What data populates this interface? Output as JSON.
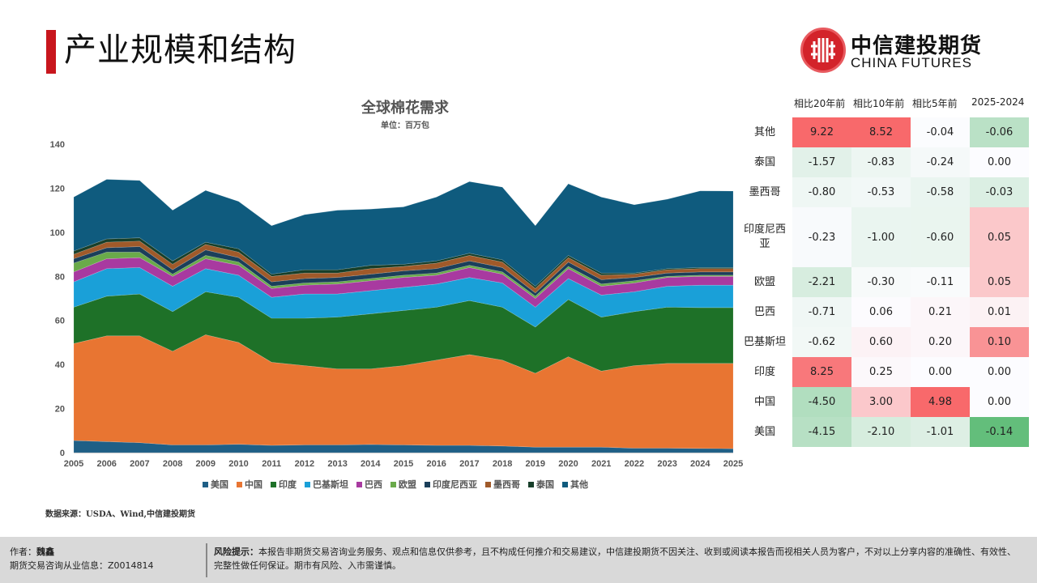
{
  "header": {
    "title": "产业规模和结构",
    "logo_cn": "中信建投期货",
    "logo_en": "CHINA FUTURES"
  },
  "chart_data": {
    "type": "area",
    "stacked": true,
    "title": "全球棉花需求",
    "subtitle": "单位：百万包",
    "xlabel": "",
    "ylabel": "",
    "ylim": [
      0,
      140
    ],
    "yticks": [
      0,
      20,
      40,
      60,
      80,
      100,
      120,
      140
    ],
    "grid": false,
    "legend_position": "bottom",
    "x": [
      "2005",
      "2006",
      "2007",
      "2008",
      "2009",
      "2010",
      "2011",
      "2012",
      "2013",
      "2014",
      "2015",
      "2016",
      "2017",
      "2018",
      "2019",
      "2020",
      "2021",
      "2022",
      "2023",
      "2024",
      "2025"
    ],
    "series": [
      {
        "name": "美国",
        "color": "#1f5f86",
        "values": [
          5.5,
          5.0,
          4.5,
          3.5,
          3.5,
          3.8,
          3.3,
          3.5,
          3.5,
          3.7,
          3.5,
          3.3,
          3.3,
          3.0,
          2.5,
          2.5,
          2.5,
          2.0,
          2.0,
          1.9,
          1.8
        ]
      },
      {
        "name": "中国",
        "color": "#e87532",
        "values": [
          44.0,
          48.0,
          48.5,
          42.5,
          50.0,
          46.2,
          37.7,
          36.0,
          34.5,
          34.3,
          36.0,
          38.7,
          41.2,
          39.0,
          33.5,
          41.0,
          34.5,
          37.5,
          38.5,
          38.6,
          38.7
        ]
      },
      {
        "name": "印度",
        "color": "#1e7128",
        "values": [
          16.5,
          18.0,
          19.0,
          18.0,
          19.5,
          20.5,
          20.0,
          21.5,
          23.5,
          25.0,
          25.0,
          24.0,
          24.5,
          24.0,
          21.0,
          26.0,
          24.5,
          24.5,
          25.5,
          25.3,
          25.3
        ]
      },
      {
        "name": "巴基斯坦",
        "color": "#1aa0d8",
        "values": [
          11.5,
          12.5,
          12.0,
          11.5,
          10.5,
          10.0,
          9.5,
          11.0,
          10.5,
          10.5,
          10.5,
          10.5,
          10.5,
          11.0,
          9.0,
          9.5,
          10.0,
          9.0,
          9.5,
          10.2,
          10.2
        ]
      },
      {
        "name": "巴西",
        "color": "#a83aa0",
        "values": [
          4.5,
          4.5,
          4.5,
          4.5,
          4.5,
          4.5,
          4.0,
          4.0,
          4.5,
          4.5,
          4.5,
          4.0,
          4.5,
          4.0,
          4.0,
          4.5,
          4.0,
          4.0,
          4.0,
          4.0,
          4.0
        ]
      },
      {
        "name": "欧盟",
        "color": "#6aaa4a",
        "values": [
          4.0,
          3.0,
          2.5,
          1.0,
          1.5,
          1.5,
          1.0,
          1.0,
          1.0,
          1.0,
          1.0,
          1.0,
          1.0,
          1.0,
          1.0,
          1.0,
          1.0,
          1.0,
          0.5,
          0.5,
          0.5
        ]
      },
      {
        "name": "印度尼西亚",
        "color": "#1b3f5a",
        "values": [
          2.0,
          2.0,
          2.5,
          2.0,
          2.5,
          2.0,
          2.0,
          2.0,
          2.0,
          2.0,
          2.0,
          2.0,
          2.0,
          2.0,
          1.5,
          2.0,
          2.0,
          1.5,
          1.5,
          1.5,
          1.5
        ]
      },
      {
        "name": "墨西哥",
        "color": "#a05a2a",
        "values": [
          2.0,
          2.5,
          2.5,
          2.5,
          2.5,
          2.5,
          2.5,
          2.5,
          2.0,
          2.5,
          2.0,
          2.5,
          2.5,
          2.5,
          2.0,
          2.0,
          2.0,
          1.5,
          1.5,
          1.5,
          1.5
        ]
      },
      {
        "name": "泰国",
        "color": "#173f2a",
        "values": [
          1.5,
          1.5,
          1.5,
          1.5,
          1.0,
          1.5,
          1.0,
          1.5,
          1.5,
          1.5,
          1.0,
          1.0,
          1.0,
          1.0,
          1.0,
          1.0,
          1.0,
          0.5,
          0.5,
          0.5,
          0.5
        ]
      },
      {
        "name": "其他",
        "color": "#0f5b7e",
        "values": [
          24.5,
          27.0,
          26.0,
          23.0,
          23.5,
          21.5,
          22.0,
          25.0,
          27.0,
          25.5,
          26.0,
          29.0,
          32.5,
          33.0,
          27.5,
          32.5,
          34.5,
          31.0,
          31.5,
          34.8,
          34.7
        ]
      }
    ]
  },
  "table": {
    "columns": [
      "相比20年前",
      "相比10年前",
      "相比5年前",
      "2025-2024"
    ],
    "rows": [
      {
        "label": "其他",
        "values": [
          "9.22",
          "8.52",
          "-0.04",
          "-0.06"
        ]
      },
      {
        "label": "泰国",
        "values": [
          "-1.57",
          "-0.83",
          "-0.24",
          "0.00"
        ]
      },
      {
        "label": "墨西哥",
        "values": [
          "-0.80",
          "-0.53",
          "-0.58",
          "-0.03"
        ]
      },
      {
        "label": "印度尼西亚",
        "values": [
          "-0.23",
          "-1.00",
          "-0.60",
          "0.05"
        ]
      },
      {
        "label": "欧盟",
        "values": [
          "-2.21",
          "-0.30",
          "-0.11",
          "0.05"
        ]
      },
      {
        "label": "巴西",
        "values": [
          "-0.71",
          "0.06",
          "0.21",
          "0.01"
        ]
      },
      {
        "label": "巴基斯坦",
        "values": [
          "-0.62",
          "0.60",
          "0.20",
          "0.10"
        ]
      },
      {
        "label": "印度",
        "values": [
          "8.25",
          "0.25",
          "0.00",
          "0.00"
        ]
      },
      {
        "label": "中国",
        "values": [
          "-4.50",
          "3.00",
          "4.98",
          "0.00"
        ]
      },
      {
        "label": "美国",
        "values": [
          "-4.15",
          "-2.10",
          "-1.01",
          "-0.14"
        ]
      }
    ],
    "colors": {
      "positive": "#f8696b",
      "negative": "#63be7b",
      "neutral": "#fcfcff"
    }
  },
  "source": "数据来源：USDA、Wind,中信建投期货",
  "footer": {
    "author_label": "作者：",
    "author": "魏鑫",
    "license_label": "期货交易咨询从业信息：",
    "license": "Z0014814",
    "risk_label": "风险提示：",
    "risk_text": "本报告非期货交易咨询业务服务、观点和信息仅供参考，且不构成任何推介和交易建议，中信建投期货不因关注、收到或阅读本报告而视相关人员为客户，不对以上分享内容的准确性、有效性、完整性做任何保证。期市有风险、入市需谨慎。"
  }
}
